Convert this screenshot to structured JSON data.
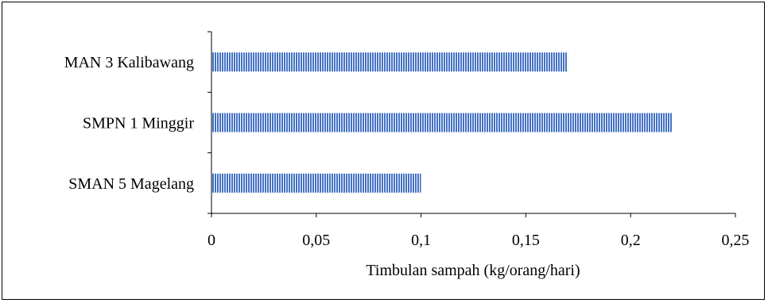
{
  "chart_data": {
    "type": "bar",
    "orientation": "horizontal",
    "categories": [
      "MAN 3 Kalibawang",
      "SMPN 1 Minggir",
      "SMAN 5 Magelang"
    ],
    "values": [
      0.17,
      0.22,
      0.1
    ],
    "xlabel": "Timbulan sampah (kg/orang/hari)",
    "ylabel": "",
    "title": "",
    "xlim": [
      0,
      0.25
    ],
    "xticks": [
      "0",
      "0,05",
      "0,1",
      "0,15",
      "0,2",
      "0,25"
    ],
    "grid": false,
    "bar_color": "#4472C4",
    "bar_pattern": "vertical-stripes"
  }
}
